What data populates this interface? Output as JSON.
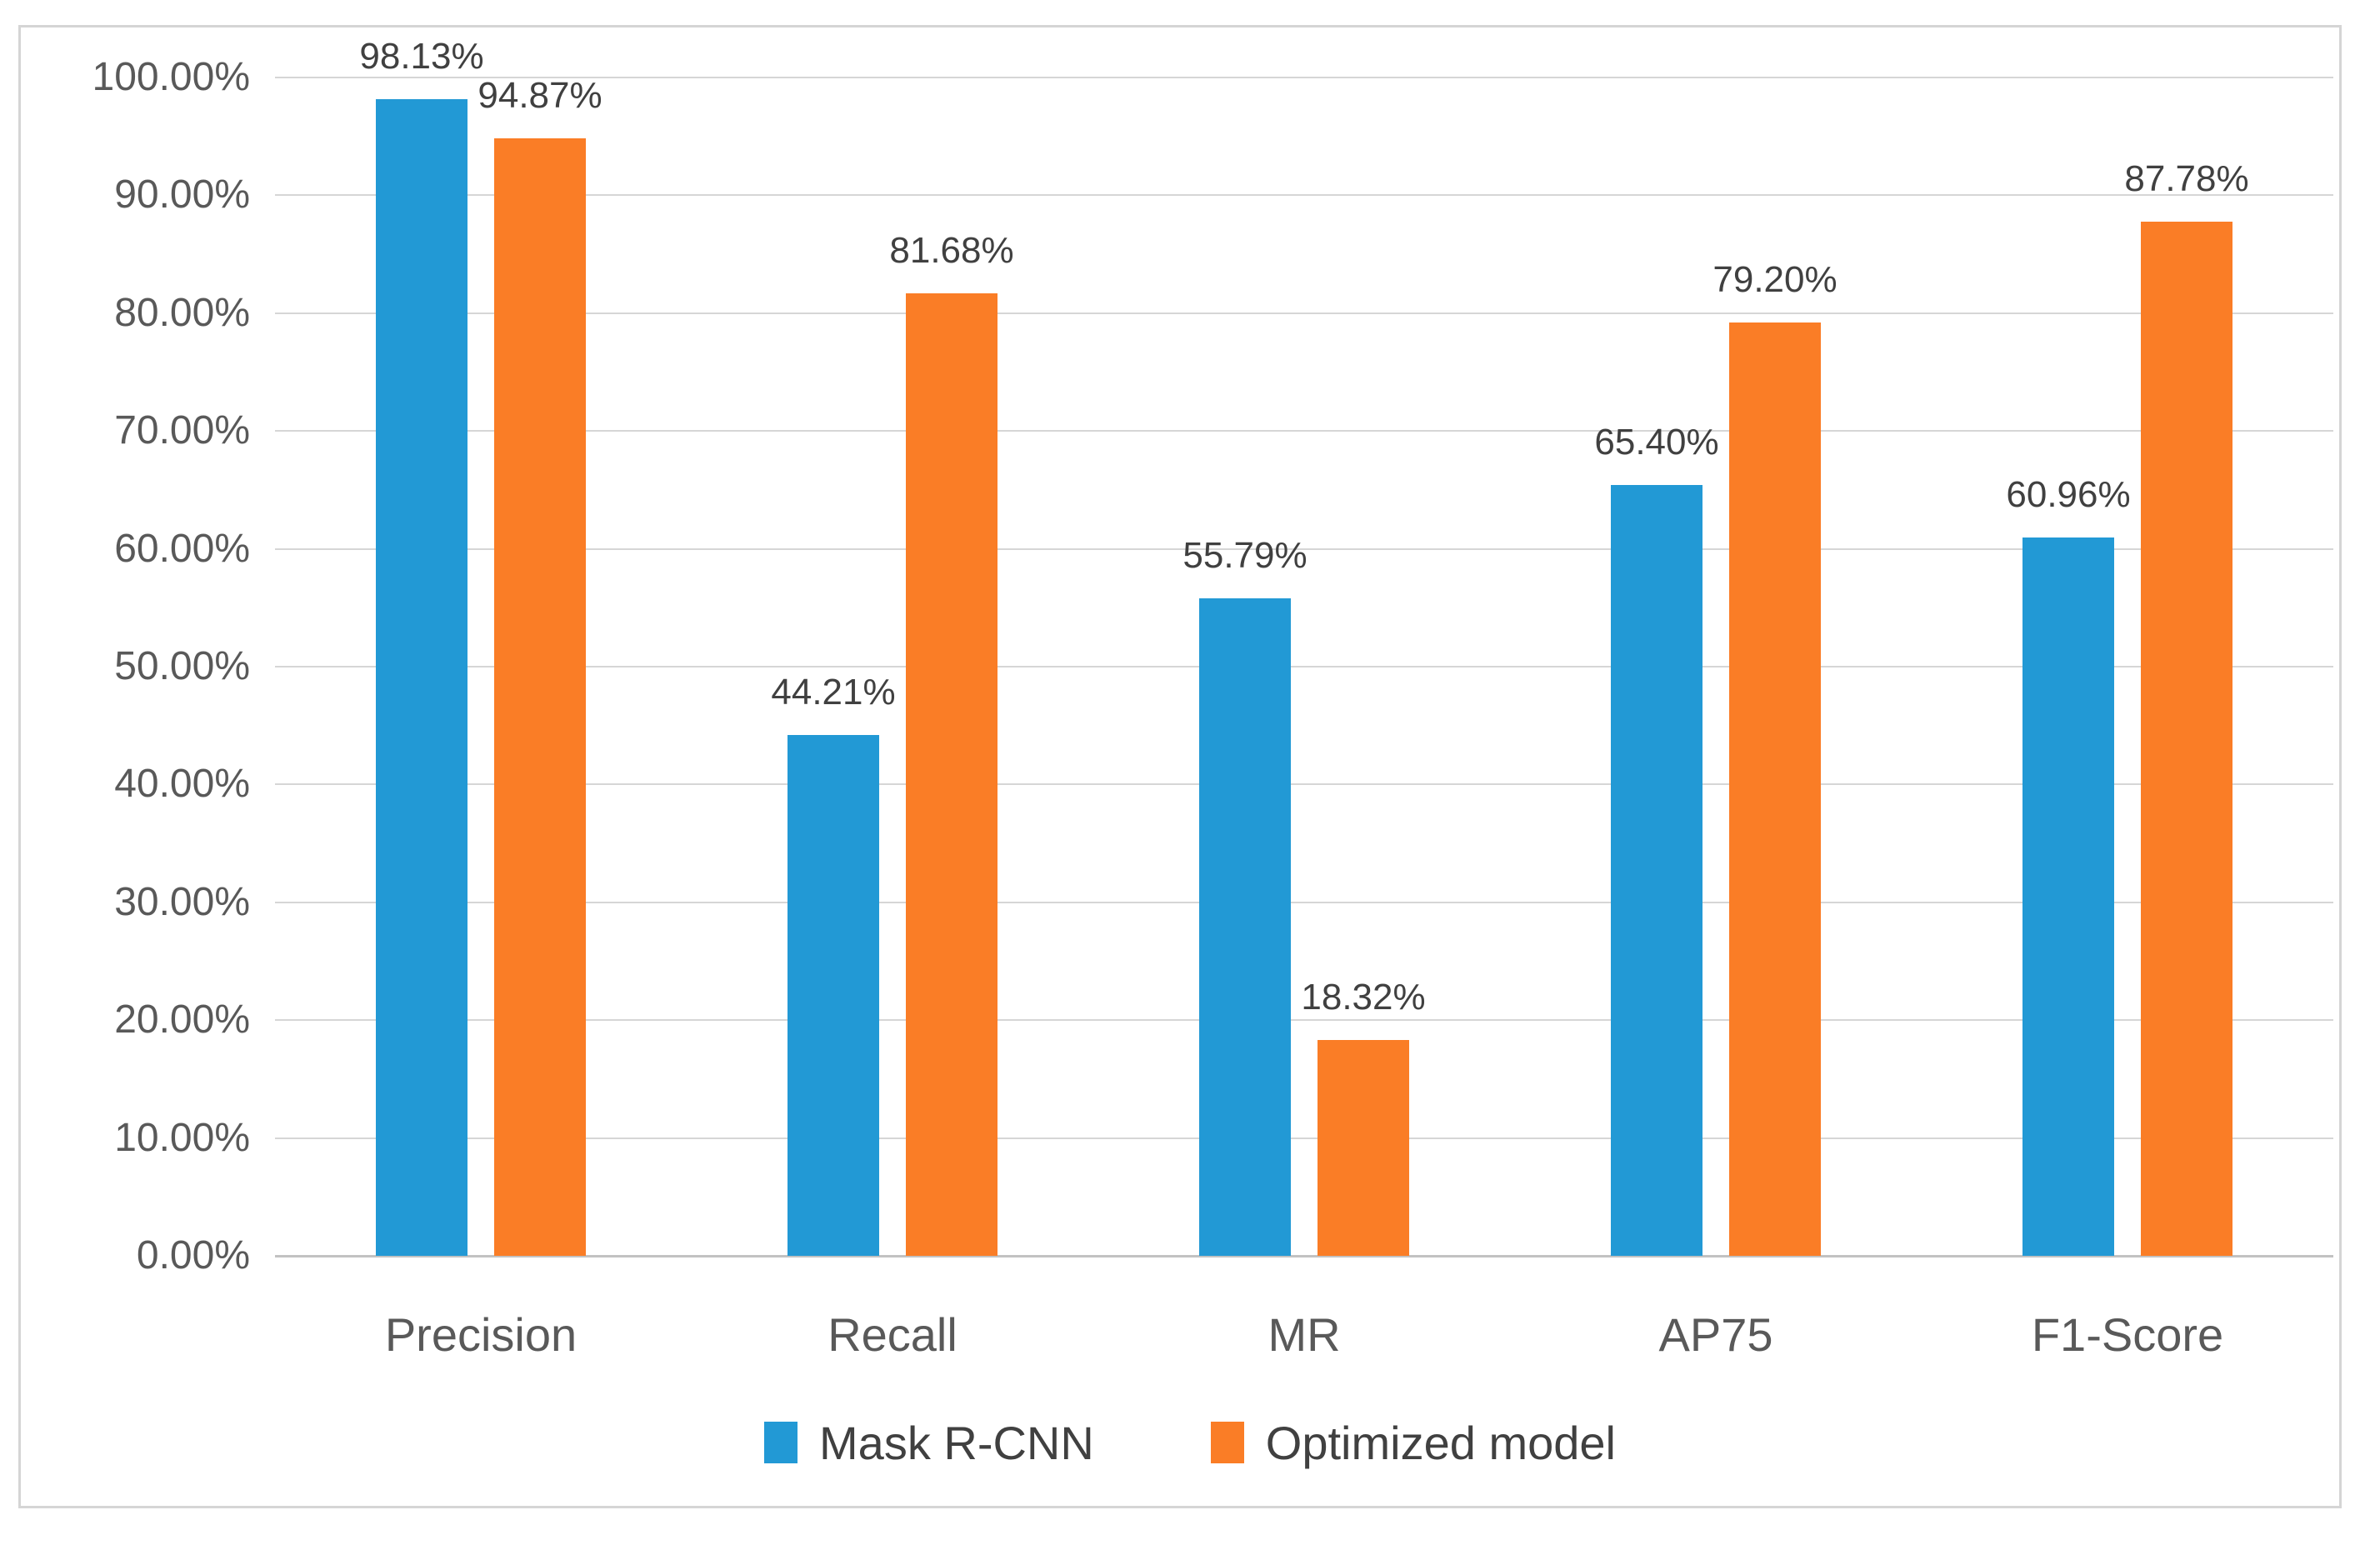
{
  "figure": {
    "background_color": "#FFFFFF",
    "border_color": "#D5D5D5"
  },
  "chart_data": {
    "type": "bar",
    "title": "",
    "xlabel": "",
    "ylabel": "",
    "categories": [
      "Precision",
      "Recall",
      "MR",
      "AP75",
      "F1-Score"
    ],
    "series": [
      {
        "name": "Mask R-CNN",
        "color": "#2299D5",
        "values": [
          98.13,
          44.21,
          55.79,
          65.4,
          60.96
        ],
        "labels": [
          "98.13%",
          "44.21%",
          "55.79%",
          "65.40%",
          "60.96%"
        ]
      },
      {
        "name": "Optimized model",
        "color": "#FA7D26",
        "values": [
          94.87,
          81.68,
          18.32,
          79.2,
          87.78
        ],
        "labels": [
          "94.87%",
          "81.68%",
          "18.32%",
          "79.20%",
          "87.78%"
        ]
      }
    ],
    "ylim": [
      0,
      100
    ],
    "y_ticks": [
      {
        "value": 100,
        "label": "100.00%"
      },
      {
        "value": 90,
        "label": "90.00%"
      },
      {
        "value": 80,
        "label": "80.00%"
      },
      {
        "value": 70,
        "label": "70.00%"
      },
      {
        "value": 60,
        "label": "60.00%"
      },
      {
        "value": 50,
        "label": "50.00%"
      },
      {
        "value": 40,
        "label": "40.00%"
      },
      {
        "value": 30,
        "label": "30.00%"
      },
      {
        "value": 20,
        "label": "20.00%"
      },
      {
        "value": 10,
        "label": "10.00%"
      },
      {
        "value": 0,
        "label": "0.00%"
      }
    ],
    "grid": true,
    "gridline_color": "#D6D6D6",
    "axis_line_color": "#C2C2C2",
    "data_label_color": "#404040",
    "tick_label_color": "#595959",
    "legend_position": "bottom"
  }
}
